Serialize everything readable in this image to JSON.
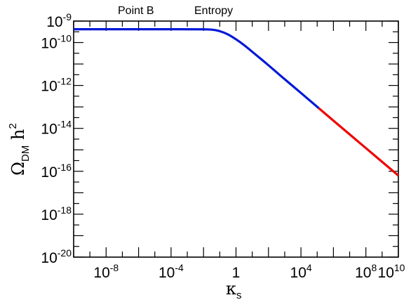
{
  "chart_data": {
    "type": "line",
    "title": "",
    "annotations": [
      {
        "text": "Point B"
      },
      {
        "text": "Entropy"
      }
    ],
    "xlabel": {
      "symbol": "κ",
      "subscript": "s"
    },
    "ylabel": {
      "symbol": "Ω",
      "subscript": "DM",
      "middle": " h",
      "superscript": "2"
    },
    "xscale": "log",
    "yscale": "log",
    "xlim_log10": [
      -10,
      10
    ],
    "ylim_log10": [
      -20,
      -9
    ],
    "x_ticks": [
      {
        "base": "10",
        "exp": "-8",
        "log": -8
      },
      {
        "base": "10",
        "exp": "-4",
        "log": -4
      },
      {
        "base": "1",
        "exp": "",
        "log": 0
      },
      {
        "base": "10",
        "exp": "4",
        "log": 4
      },
      {
        "base": "10",
        "exp": "8",
        "log": 8
      },
      {
        "base": "10",
        "exp": "10",
        "log": 10
      }
    ],
    "y_ticks": [
      {
        "base": "10",
        "exp": "-9",
        "log": -9
      },
      {
        "base": "10",
        "exp": "-10",
        "log": -10
      },
      {
        "base": "10",
        "exp": "-12",
        "log": -12
      },
      {
        "base": "10",
        "exp": "-14",
        "log": -14
      },
      {
        "base": "10",
        "exp": "-16",
        "log": -16
      },
      {
        "base": "10",
        "exp": "-18",
        "log": -18
      },
      {
        "base": "10",
        "exp": "-20",
        "log": -20
      }
    ],
    "series": [
      {
        "color": "#0018d8",
        "x_log10": [
          -10,
          -4,
          -2,
          -1.5,
          -1,
          -0.5,
          0,
          0.5,
          1,
          2,
          3,
          4,
          5.1
        ],
        "y_log10": [
          -9.38,
          -9.38,
          -9.385,
          -9.4,
          -9.47,
          -9.62,
          -9.85,
          -10.12,
          -10.43,
          -11.06,
          -11.71,
          -12.35,
          -13.06
        ]
      },
      {
        "color": "#ee0000",
        "x_log10": [
          5.1,
          6,
          7,
          8,
          9,
          10
        ],
        "y_log10": [
          -13.06,
          -13.64,
          -14.28,
          -14.92,
          -15.56,
          -16.2
        ]
      }
    ]
  }
}
